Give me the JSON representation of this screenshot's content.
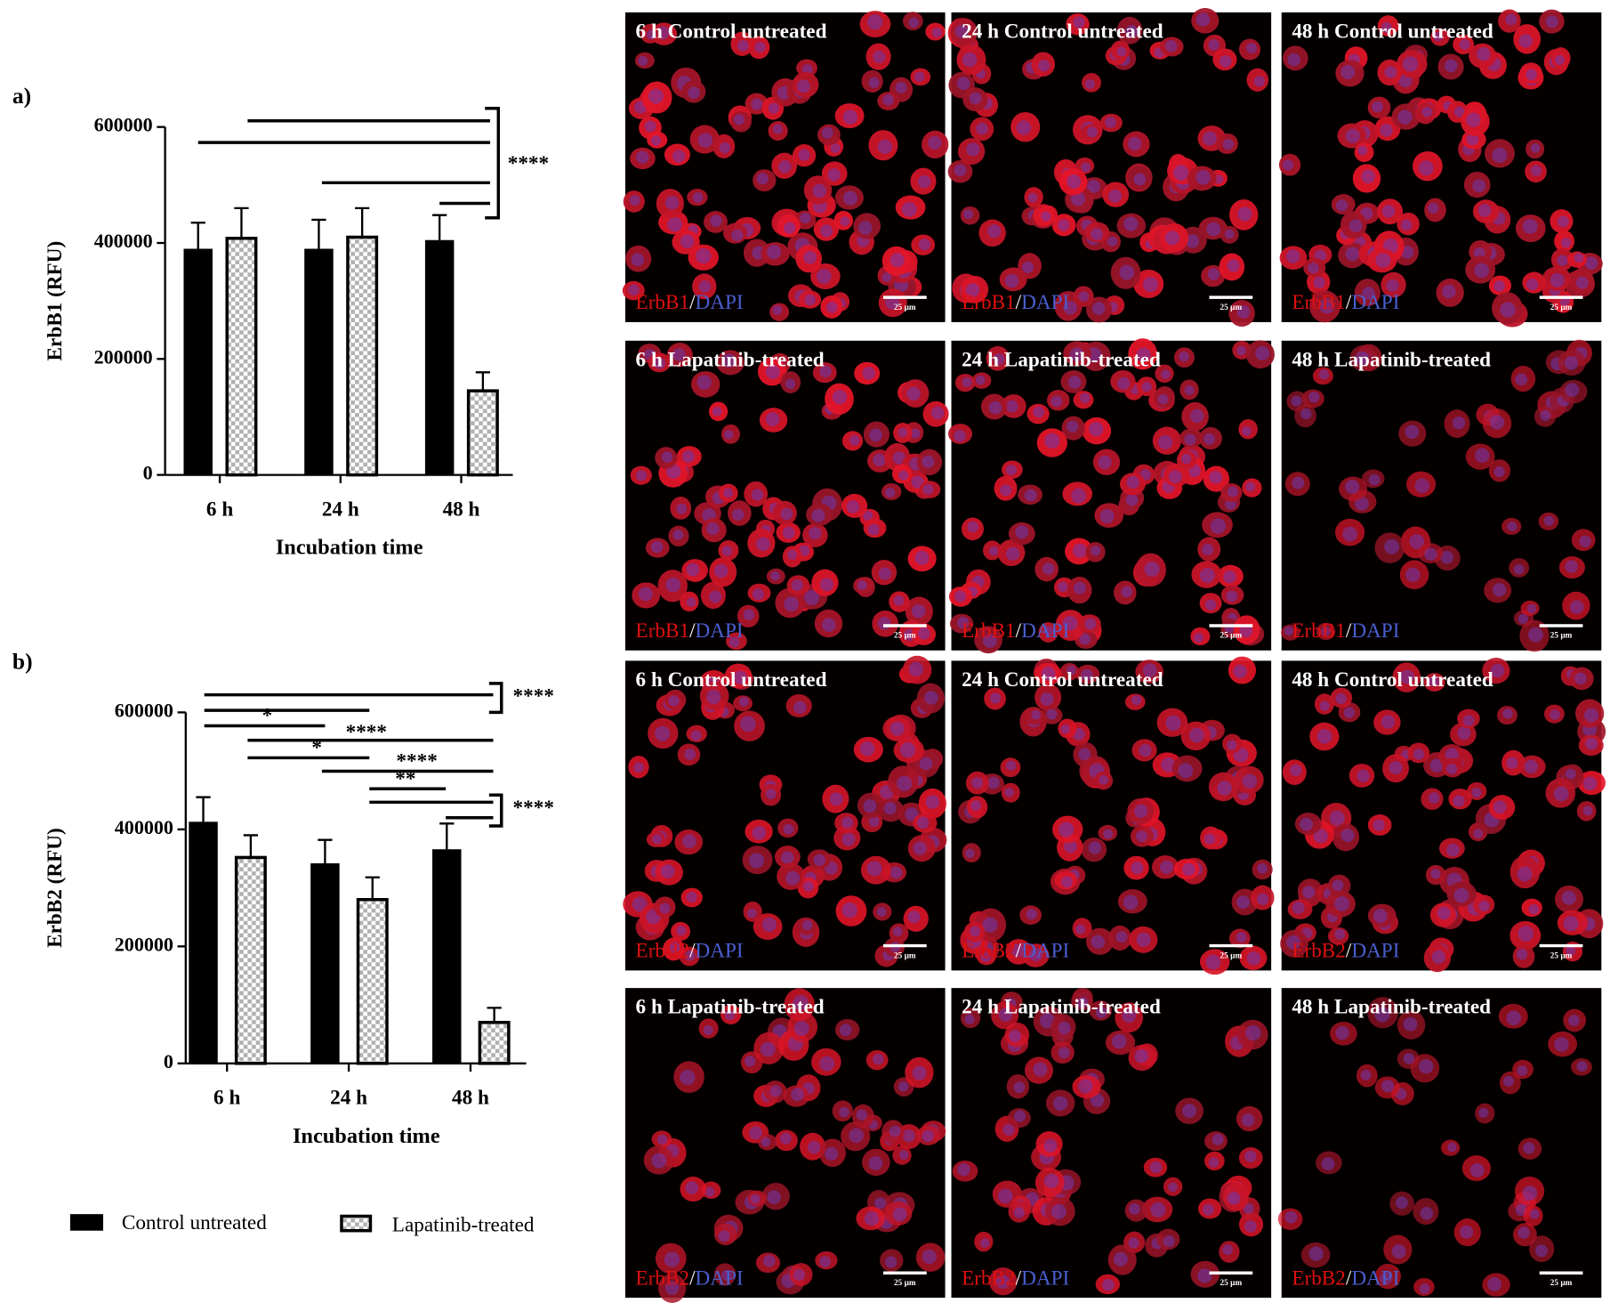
{
  "chart_data": [
    {
      "type": "bar",
      "panel_label": "a)",
      "y_label": "ErbB1 (RFU)",
      "x_label": "Incubation time",
      "categories": [
        "6 h",
        "24 h",
        "48 h"
      ],
      "series": [
        {
          "name": "Control untreated",
          "color": "#000000",
          "values": [
            390000,
            390000,
            405000
          ],
          "errors": [
            45000,
            50000,
            43000
          ]
        },
        {
          "name": "Lapatinib-treated",
          "color": "#b0b0b0",
          "values": [
            408000,
            410000,
            145000
          ],
          "errors": [
            52000,
            50000,
            32000
          ]
        }
      ],
      "ylim": [
        0,
        600000
      ],
      "yticks": [
        0,
        200000,
        400000,
        600000
      ],
      "annotations": [
        "****"
      ]
    },
    {
      "type": "bar",
      "panel_label": "b)",
      "y_label": "ErbB2 (RFU)",
      "x_label": "Incubation time",
      "categories": [
        "6 h",
        "24 h",
        "48 h"
      ],
      "series": [
        {
          "color": "#000000",
          "values": [
            413000,
            342000,
            366000
          ],
          "errors": [
            42000,
            40000,
            44000
          ]
        },
        {
          "color": "#b0b0b0",
          "values": [
            352000,
            280000,
            70000
          ],
          "errors": [
            38000,
            38000,
            25000
          ]
        }
      ],
      "ylim": [
        0,
        600000
      ],
      "yticks": [
        0,
        200000,
        400000,
        600000
      ],
      "annotations": [
        "****",
        "*",
        "****",
        "*",
        "****",
        "**",
        "****"
      ]
    }
  ],
  "panels": [
    {
      "title": "6 h Control untreated",
      "marker": "ErbB1",
      "sep": "/",
      "dapi": "DAPI",
      "scale": "25 µm"
    },
    {
      "title": "24 h Control untreated",
      "marker": "ErbB1",
      "sep": "/",
      "dapi": "DAPI",
      "scale": "25 µm"
    },
    {
      "title": "48 h Control untreated",
      "marker": "ErbB1",
      "sep": "/",
      "dapi": "DAPI",
      "scale": "25 µm"
    },
    {
      "title": "6 h Lapatinib-treated",
      "marker": "ErbB1",
      "sep": "/",
      "dapi": "DAPI",
      "scale": "25 µm"
    },
    {
      "title": "24 h Lapatinib-treated",
      "marker": "ErbB1",
      "sep": "/",
      "dapi": "DAPI",
      "scale": "25 µm"
    },
    {
      "title": "48 h Lapatinib-treated",
      "marker": "ErbB1",
      "sep": "/",
      "dapi": "DAPI",
      "scale": "25 µm"
    },
    {
      "title": "6 h Control untreated",
      "marker": "ErbB2",
      "sep": "/",
      "dapi": "DAPI",
      "scale": "25 µm"
    },
    {
      "title": "24 h Control untreated",
      "marker": "ErbB2",
      "sep": "/",
      "dapi": "DAPI",
      "scale": "25 µm"
    },
    {
      "title": "48 h Control untreated",
      "marker": "ErbB2",
      "sep": "/",
      "dapi": "DAPI",
      "scale": "25 µm"
    },
    {
      "title": "6 h Lapatinib-treated",
      "marker": "ErbB2",
      "sep": "/",
      "dapi": "DAPI",
      "scale": "25 µm"
    },
    {
      "title": "24 h Lapatinib-treated",
      "marker": "ErbB2",
      "sep": "/",
      "dapi": "DAPI",
      "scale": "25 µm"
    },
    {
      "title": "48 h Lapatinib-treated",
      "marker": "ErbB2",
      "sep": "/",
      "dapi": "DAPI",
      "scale": "25 µm"
    }
  ]
}
